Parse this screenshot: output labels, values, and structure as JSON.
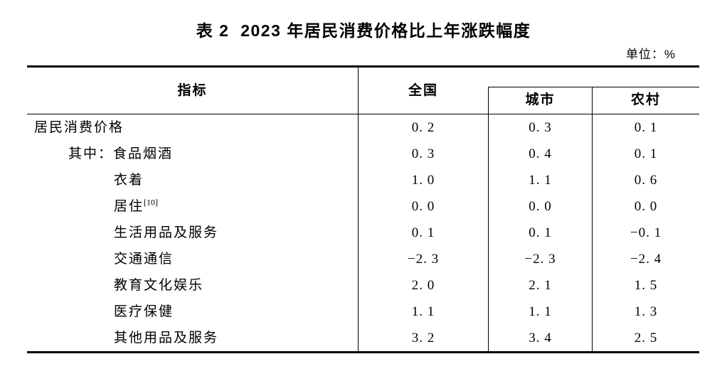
{
  "title": "表 2  2023 年居民消费价格比上年涨跌幅度",
  "unit_label": "单位：%",
  "table": {
    "header": {
      "indicator": "指标",
      "national": "全国",
      "city": "城市",
      "rural": "农村"
    },
    "rows": [
      {
        "label": "居民消费价格",
        "footnote": "",
        "national": "0. 2",
        "city": "0. 3",
        "rural": "0. 1"
      },
      {
        "label": "其中：食品烟酒",
        "footnote": "",
        "national": "0. 3",
        "city": "0. 4",
        "rural": "0. 1"
      },
      {
        "label": "衣着",
        "footnote": "",
        "national": "1. 0",
        "city": "1. 1",
        "rural": "0. 6"
      },
      {
        "label": "居住",
        "footnote": "[10]",
        "national": "0. 0",
        "city": "0. 0",
        "rural": "0. 0"
      },
      {
        "label": "生活用品及服务",
        "footnote": "",
        "national": "0. 1",
        "city": "0. 1",
        "rural": "−0. 1"
      },
      {
        "label": "交通通信",
        "footnote": "",
        "national": "−2. 3",
        "city": "−2. 3",
        "rural": "−2. 4"
      },
      {
        "label": "教育文化娱乐",
        "footnote": "",
        "national": "2. 0",
        "city": "2. 1",
        "rural": "1. 5"
      },
      {
        "label": "医疗保健",
        "footnote": "",
        "national": "1. 1",
        "city": "1. 1",
        "rural": "1. 3"
      },
      {
        "label": "其他用品及服务",
        "footnote": "",
        "national": "3. 2",
        "city": "3. 4",
        "rural": "2. 5"
      }
    ]
  }
}
